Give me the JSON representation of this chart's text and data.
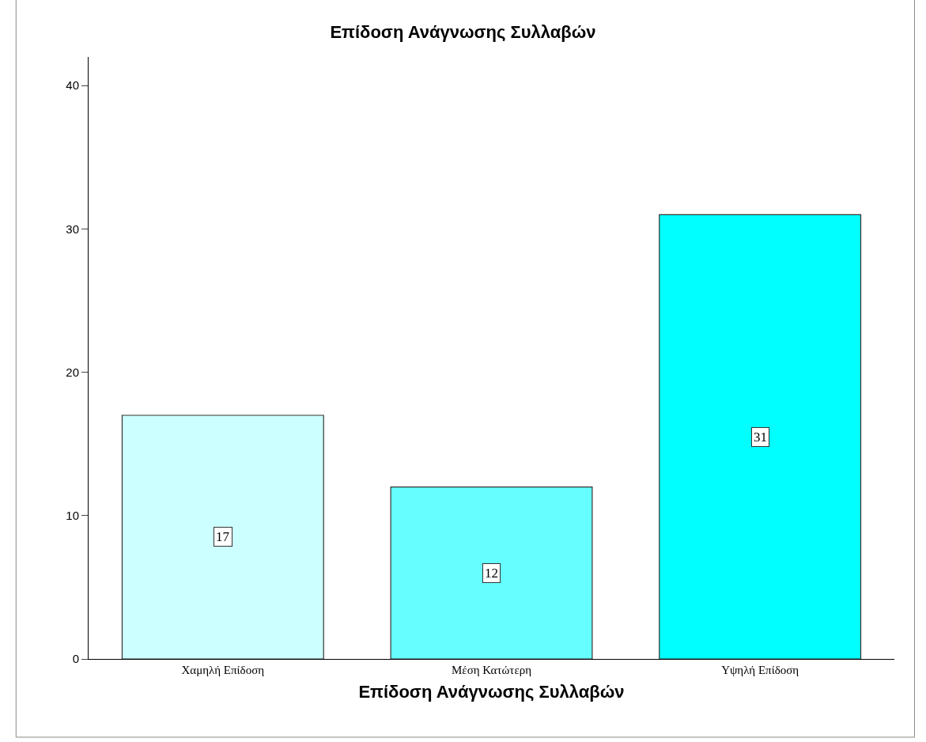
{
  "chart_data": {
    "type": "bar",
    "title": "Επίδοση Ανάγνωσης Συλλαβών",
    "xlabel": "Επίδοση Ανάγνωσης Συλλαβών",
    "categories": [
      "Χαμηλή Επίδοση",
      "Μέση Κατώτερη",
      "Υψηλή Επίδοση"
    ],
    "values": [
      17,
      12,
      31
    ],
    "colors": [
      "#ccffff",
      "#66ffff",
      "#00ffff"
    ],
    "ylim": [
      0,
      42
    ],
    "yticks": [
      0,
      10,
      20,
      30,
      40
    ],
    "data_labels": true
  }
}
